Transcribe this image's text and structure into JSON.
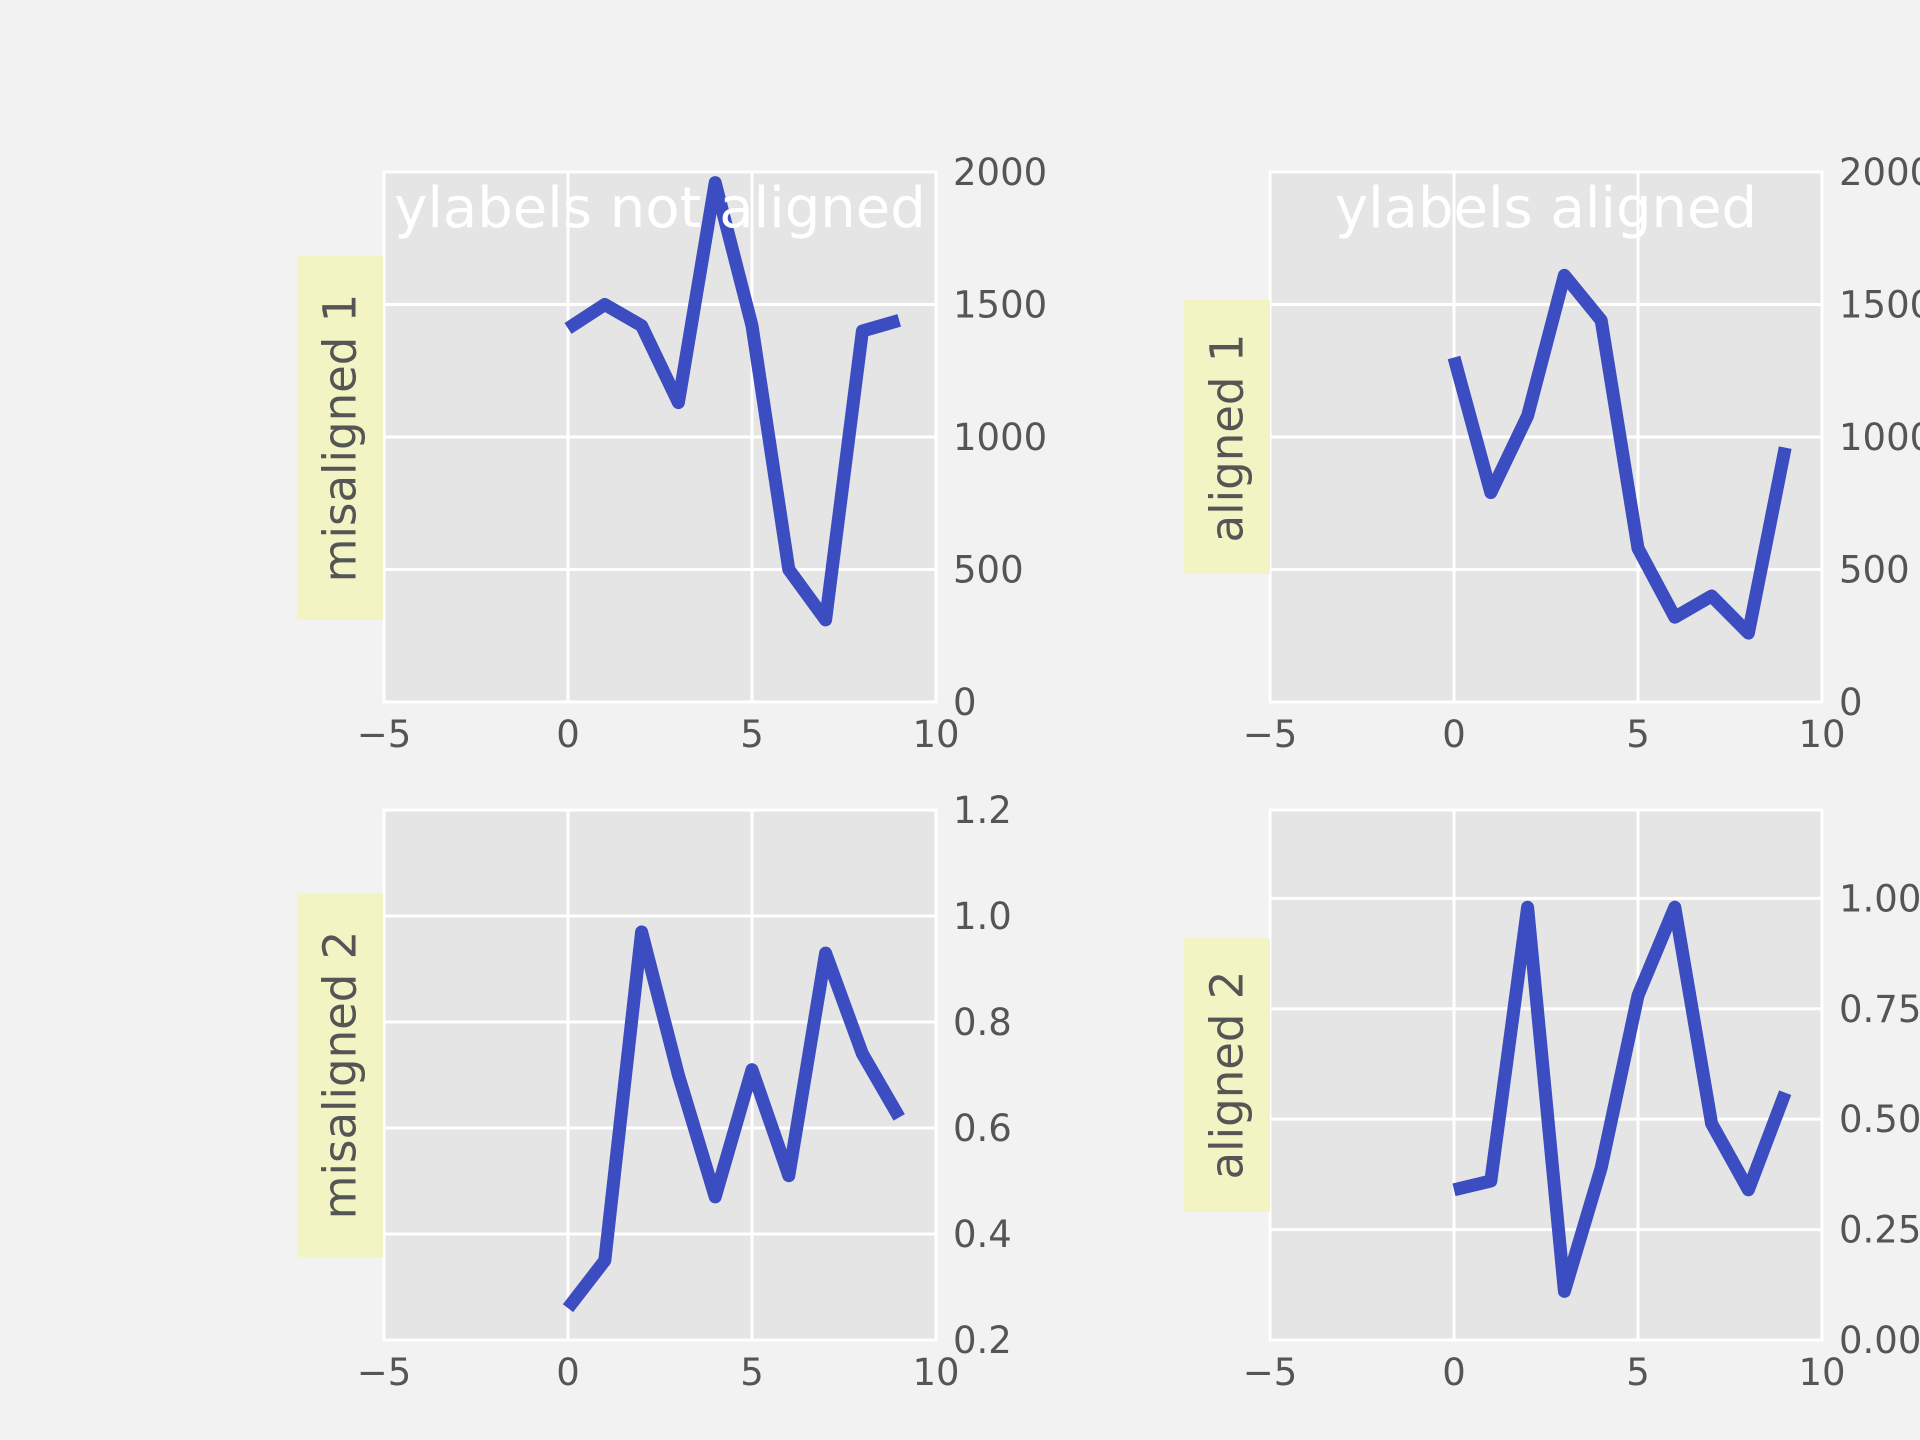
{
  "colors": {
    "figure_bg": "#f2f2f2",
    "axes_bg": "#e5e5e5",
    "grid": "#ffffff",
    "line": "#3c4cc1",
    "ylabel_box": "#f2f4c3",
    "tick_text": "#555555",
    "title_text": "#ffffff"
  },
  "chart_data": [
    {
      "type": "line",
      "title": "ylabels not aligned",
      "ylabel": "misaligned 1",
      "xlim": [
        -5,
        10
      ],
      "ylim": [
        0,
        2000
      ],
      "x_ticks": [
        -5,
        0,
        5,
        10
      ],
      "x_tick_labels": [
        "−5",
        "0",
        "5",
        "10"
      ],
      "y_ticks": [
        0,
        500,
        1000,
        1500,
        2000
      ],
      "y_tick_labels": [
        "0",
        "500",
        "1000",
        "1500",
        "2000"
      ],
      "y_tick_side": "right",
      "grid": true,
      "x": [
        0,
        1,
        2,
        3,
        4,
        5,
        6,
        7,
        8,
        9
      ],
      "values": [
        1410,
        1500,
        1420,
        1130,
        1960,
        1420,
        500,
        310,
        1400,
        1440
      ]
    },
    {
      "type": "line",
      "title": "ylabels aligned",
      "ylabel": "aligned 1",
      "xlim": [
        -5,
        10
      ],
      "ylim": [
        0,
        2000
      ],
      "x_ticks": [
        -5,
        0,
        5,
        10
      ],
      "x_tick_labels": [
        "−5",
        "0",
        "5",
        "10"
      ],
      "y_ticks": [
        0,
        500,
        1000,
        1500,
        2000
      ],
      "y_tick_labels": [
        "0",
        "500",
        "1000",
        "1500",
        "2000"
      ],
      "y_tick_side": "right",
      "grid": true,
      "x": [
        0,
        1,
        2,
        3,
        4,
        5,
        6,
        7,
        8,
        9
      ],
      "values": [
        1300,
        790,
        1080,
        1610,
        1440,
        580,
        320,
        400,
        260,
        960
      ]
    },
    {
      "type": "line",
      "title": "",
      "ylabel": "misaligned 2",
      "xlim": [
        -5,
        10
      ],
      "ylim": [
        0.2,
        1.2
      ],
      "x_ticks": [
        -5,
        0,
        5,
        10
      ],
      "x_tick_labels": [
        "−5",
        "0",
        "5",
        "10"
      ],
      "y_ticks": [
        0.2,
        0.4,
        0.6,
        0.8,
        1.0,
        1.2
      ],
      "y_tick_labels": [
        "0.2",
        "0.4",
        "0.6",
        "0.8",
        "1.0",
        "1.2"
      ],
      "y_tick_side": "right",
      "grid": true,
      "x": [
        0,
        1,
        2,
        3,
        4,
        5,
        6,
        7,
        8,
        9
      ],
      "values": [
        0.26,
        0.35,
        0.97,
        0.7,
        0.47,
        0.71,
        0.51,
        0.93,
        0.74,
        0.62
      ]
    },
    {
      "type": "line",
      "title": "",
      "ylabel": "aligned 2",
      "xlim": [
        -5,
        10
      ],
      "ylim": [
        0,
        1.2
      ],
      "x_ticks": [
        -5,
        0,
        5,
        10
      ],
      "x_tick_labels": [
        "−5",
        "0",
        "5",
        "10"
      ],
      "y_ticks": [
        0,
        0.25,
        0.5,
        0.75,
        1.0
      ],
      "y_tick_labels": [
        "0.00",
        "0.25",
        "0.50",
        "0.75",
        "1.00"
      ],
      "y_tick_side": "right",
      "grid": true,
      "x": [
        0,
        1,
        2,
        3,
        4,
        5,
        6,
        7,
        8,
        9
      ],
      "values": [
        0.34,
        0.36,
        0.98,
        0.11,
        0.39,
        0.78,
        0.98,
        0.49,
        0.34,
        0.56
      ]
    }
  ]
}
